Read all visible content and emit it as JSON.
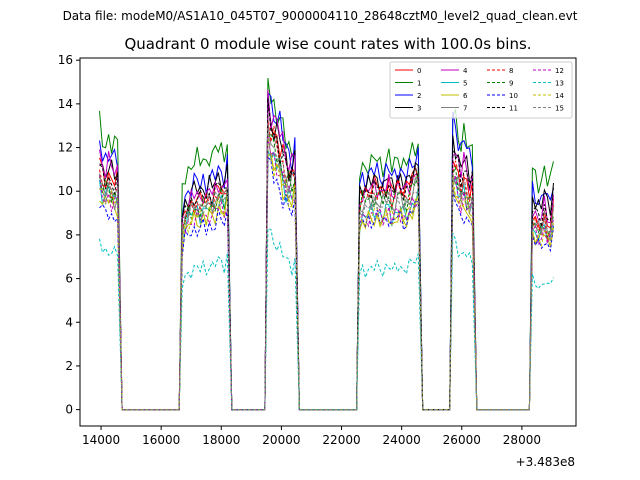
{
  "figure": {
    "suptitle": "Data file: modeM0/AS1A10_045T07_9000004110_28648cztM0_level2_quad_clean.evt",
    "title": "Quadrant 0 module wise count rates with 100.0s bins.",
    "offset_label": "+3.483e8"
  },
  "chart_data": {
    "type": "line",
    "title": "Quadrant 0 module wise count rates with 100.0s bins.",
    "xlabel": "",
    "ylabel": "",
    "x_offset": 348300000,
    "xlim": [
      13300,
      29800
    ],
    "ylim": [
      -0.75,
      16.1
    ],
    "xticks": [
      14000,
      16000,
      18000,
      20000,
      22000,
      24000,
      26000,
      28000
    ],
    "xtick_labels": [
      "14000",
      "16000",
      "18000",
      "20000",
      "22000",
      "24000",
      "26000",
      "28000"
    ],
    "yticks": [
      0,
      2,
      4,
      6,
      8,
      10,
      12,
      14,
      16
    ],
    "ytick_labels": [
      "0",
      "2",
      "4",
      "6",
      "8",
      "10",
      "12",
      "14",
      "16"
    ],
    "grid": false,
    "legend_position": "top-right",
    "legend_ncol": 4,
    "segments": [
      {
        "start": 13950,
        "end": 14550,
        "gap_end": 16700
      },
      {
        "start": 16700,
        "end": 18200,
        "gap_end": 19550
      },
      {
        "start": 19550,
        "end": 20450,
        "gap_end": 22600
      },
      {
        "start": 22600,
        "end": 24550,
        "gap_end": 25700
      },
      {
        "start": 25700,
        "end": 26350,
        "gap_end": 28350
      },
      {
        "start": 28350,
        "end": 29050,
        "gap_end": null
      }
    ],
    "segment_shapes": [
      [
        1.0,
        0.93,
        0.96,
        0.92,
        0.93
      ],
      [
        0.88,
        0.96,
        0.98,
        1.0,
        1.02,
        0.99,
        1.03,
        1.0,
        1.04,
        1.01,
        1.06,
        1.08,
        1.02,
        1.1
      ],
      [
        1.0,
        0.94,
        0.92,
        0.9,
        0.86,
        0.82,
        0.8,
        0.78,
        0.82
      ],
      [
        0.96,
        1.0,
        0.99,
        1.02,
        1.0,
        1.03,
        1.01,
        0.99,
        1.02,
        1.03,
        0.98,
        1.01,
        1.04,
        1.02,
        0.98,
        1.02,
        1.05,
        1.08,
        1.1
      ],
      [
        1.04,
        1.02,
        0.93,
        0.98,
        0.9,
        0.92
      ],
      [
        1.0,
        0.97,
        0.95,
        1.02,
        0.9,
        1.06
      ]
    ],
    "series": [
      {
        "name": "0",
        "color": "#ff0000",
        "dashed": false,
        "levels": [
          11.3,
          9.5,
          13.8,
          10.1,
          10.9,
          8.8
        ]
      },
      {
        "name": "1",
        "color": "#008000",
        "dashed": false,
        "levels": [
          13.0,
          11.3,
          15.1,
          11.2,
          13.0,
          10.9
        ]
      },
      {
        "name": "2",
        "color": "#0000ff",
        "dashed": false,
        "levels": [
          12.3,
          10.3,
          14.8,
          10.7,
          12.7,
          10.0
        ]
      },
      {
        "name": "3",
        "color": "#000000",
        "dashed": false,
        "levels": [
          11.6,
          10.0,
          14.0,
          10.3,
          11.8,
          9.8
        ]
      },
      {
        "name": "4",
        "color": "#bf00bf",
        "dashed": false,
        "levels": [
          11.8,
          9.7,
          14.4,
          10.0,
          11.6,
          9.2
        ]
      },
      {
        "name": "5",
        "color": "#00bfbf",
        "dashed": false,
        "levels": [
          10.4,
          9.0,
          12.4,
          8.9,
          10.2,
          8.3
        ]
      },
      {
        "name": "6",
        "color": "#bfbf00",
        "dashed": false,
        "levels": [
          10.0,
          8.6,
          12.1,
          8.6,
          9.7,
          8.1
        ]
      },
      {
        "name": "7",
        "color": "#808080",
        "dashed": false,
        "levels": [
          10.5,
          9.2,
          13.0,
          9.4,
          10.4,
          8.6
        ]
      },
      {
        "name": "8",
        "color": "#ff0000",
        "dashed": true,
        "levels": [
          10.8,
          9.3,
          13.3,
          9.8,
          10.8,
          8.6
        ]
      },
      {
        "name": "9",
        "color": "#008000",
        "dashed": true,
        "levels": [
          10.6,
          9.1,
          12.9,
          9.6,
          10.4,
          8.5
        ]
      },
      {
        "name": "10",
        "color": "#0000ff",
        "dashed": true,
        "levels": [
          9.5,
          8.2,
          11.5,
          8.6,
          9.3,
          7.8
        ]
      },
      {
        "name": "11",
        "color": "#000000",
        "dashed": true,
        "levels": [
          11.1,
          9.6,
          13.6,
          10.0,
          11.4,
          9.2
        ]
      },
      {
        "name": "12",
        "color": "#bf00bf",
        "dashed": true,
        "levels": [
          10.2,
          8.7,
          12.4,
          8.8,
          10.0,
          8.2
        ]
      },
      {
        "name": "13",
        "color": "#00bfbf",
        "dashed": true,
        "levels": [
          7.7,
          6.4,
          8.4,
          6.4,
          7.5,
          5.9
        ]
      },
      {
        "name": "14",
        "color": "#bfbf00",
        "dashed": true,
        "levels": [
          10.3,
          8.8,
          12.2,
          8.8,
          9.9,
          8.1
        ]
      },
      {
        "name": "15",
        "color": "#808080",
        "dashed": true,
        "levels": [
          10.6,
          9.2,
          12.7,
          9.3,
          10.5,
          8.6
        ]
      }
    ]
  }
}
